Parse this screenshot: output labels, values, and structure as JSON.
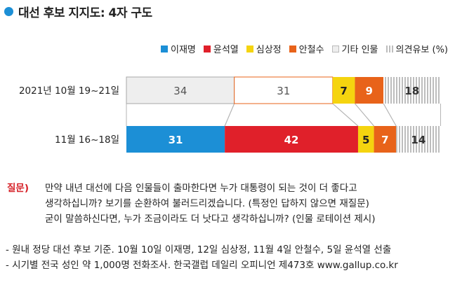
{
  "title": "대선 후보 지지도: 4자 구도",
  "colors": {
    "title_dot": "#1c8fd6",
    "lee": "#1c8fd6",
    "yoon": "#e0202a",
    "sim": "#f5d40f",
    "ahn": "#e8631a",
    "other": "#eeeeee",
    "undecided": "#bdbdbd",
    "question": "#d62027"
  },
  "legend": [
    {
      "label": "이재명",
      "color": "#1c8fd6",
      "style": "solid"
    },
    {
      "label": "윤석열",
      "color": "#e0202a",
      "style": "solid"
    },
    {
      "label": "심상정",
      "color": "#f5d40f",
      "style": "solid"
    },
    {
      "label": "안철수",
      "color": "#e8631a",
      "style": "solid"
    },
    {
      "label": "기타 인물",
      "color": "#eeeeee",
      "style": "solid"
    },
    {
      "label": "의견유보 (%)",
      "color": "#bdbdbd",
      "style": "striped"
    }
  ],
  "chart_data": {
    "type": "bar",
    "orientation": "horizontal",
    "stacked": true,
    "categories": [
      "2021년 10월 19~21일",
      "11월 16~18일"
    ],
    "series": [
      {
        "name": "이재명",
        "values": [
          34,
          31
        ]
      },
      {
        "name": "윤석열",
        "values": [
          31,
          42
        ]
      },
      {
        "name": "심상정",
        "values": [
          7,
          5
        ]
      },
      {
        "name": "안철수",
        "values": [
          9,
          7
        ]
      },
      {
        "name": "기타 인물",
        "values": [
          0,
          0
        ]
      },
      {
        "name": "의견유보",
        "values": [
          18,
          14
        ]
      }
    ],
    "unit": "%",
    "legend_position": "top-right",
    "grid": false
  },
  "question": {
    "label": "질문)",
    "lines": [
      "만약 내년 대선에 다음 인물들이 출마한다면 누가 대통령이 되는 것이 더 좋다고",
      "생각하십니까? 보기를 순환하여 불러드리겠습니다. (특정인 답하지 않으면 재질문)",
      "굳이 말씀하신다면, 누가 조금이라도 더 낫다고 생각하십니까? (인물 로테이션 제시)"
    ]
  },
  "notes": [
    "- 원내 정당 대선 후보 기준. 10월 10일 이재명, 12일 심상정, 11월 4일 안철수, 5일 윤석열 선출",
    "- 시기별 전국 성인 약 1,000명 전화조사. 한국갤럽 데일리 오피니언 제473호 www.gallup.co.kr"
  ]
}
